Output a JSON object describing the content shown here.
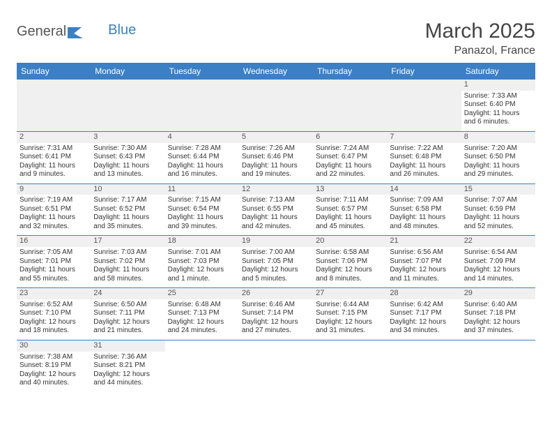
{
  "logo": {
    "part1": "General",
    "part2": "Blue"
  },
  "title": "March 2025",
  "location": "Panazol, France",
  "dayNames": [
    "Sunday",
    "Monday",
    "Tuesday",
    "Wednesday",
    "Thursday",
    "Friday",
    "Saturday"
  ],
  "colors": {
    "header_bg": "#3b7fc4",
    "header_text": "#ffffff",
    "border": "#3b7fc4",
    "daynum_bg": "#f0f0f0",
    "text": "#333333",
    "background": "#ffffff"
  },
  "weeks": [
    [
      null,
      null,
      null,
      null,
      null,
      null,
      {
        "n": "1",
        "sr": "Sunrise: 7:33 AM",
        "ss": "Sunset: 6:40 PM",
        "dl1": "Daylight: 11 hours",
        "dl2": "and 6 minutes."
      }
    ],
    [
      {
        "n": "2",
        "sr": "Sunrise: 7:31 AM",
        "ss": "Sunset: 6:41 PM",
        "dl1": "Daylight: 11 hours",
        "dl2": "and 9 minutes."
      },
      {
        "n": "3",
        "sr": "Sunrise: 7:30 AM",
        "ss": "Sunset: 6:43 PM",
        "dl1": "Daylight: 11 hours",
        "dl2": "and 13 minutes."
      },
      {
        "n": "4",
        "sr": "Sunrise: 7:28 AM",
        "ss": "Sunset: 6:44 PM",
        "dl1": "Daylight: 11 hours",
        "dl2": "and 16 minutes."
      },
      {
        "n": "5",
        "sr": "Sunrise: 7:26 AM",
        "ss": "Sunset: 6:46 PM",
        "dl1": "Daylight: 11 hours",
        "dl2": "and 19 minutes."
      },
      {
        "n": "6",
        "sr": "Sunrise: 7:24 AM",
        "ss": "Sunset: 6:47 PM",
        "dl1": "Daylight: 11 hours",
        "dl2": "and 22 minutes."
      },
      {
        "n": "7",
        "sr": "Sunrise: 7:22 AM",
        "ss": "Sunset: 6:48 PM",
        "dl1": "Daylight: 11 hours",
        "dl2": "and 26 minutes."
      },
      {
        "n": "8",
        "sr": "Sunrise: 7:20 AM",
        "ss": "Sunset: 6:50 PM",
        "dl1": "Daylight: 11 hours",
        "dl2": "and 29 minutes."
      }
    ],
    [
      {
        "n": "9",
        "sr": "Sunrise: 7:19 AM",
        "ss": "Sunset: 6:51 PM",
        "dl1": "Daylight: 11 hours",
        "dl2": "and 32 minutes."
      },
      {
        "n": "10",
        "sr": "Sunrise: 7:17 AM",
        "ss": "Sunset: 6:52 PM",
        "dl1": "Daylight: 11 hours",
        "dl2": "and 35 minutes."
      },
      {
        "n": "11",
        "sr": "Sunrise: 7:15 AM",
        "ss": "Sunset: 6:54 PM",
        "dl1": "Daylight: 11 hours",
        "dl2": "and 39 minutes."
      },
      {
        "n": "12",
        "sr": "Sunrise: 7:13 AM",
        "ss": "Sunset: 6:55 PM",
        "dl1": "Daylight: 11 hours",
        "dl2": "and 42 minutes."
      },
      {
        "n": "13",
        "sr": "Sunrise: 7:11 AM",
        "ss": "Sunset: 6:57 PM",
        "dl1": "Daylight: 11 hours",
        "dl2": "and 45 minutes."
      },
      {
        "n": "14",
        "sr": "Sunrise: 7:09 AM",
        "ss": "Sunset: 6:58 PM",
        "dl1": "Daylight: 11 hours",
        "dl2": "and 48 minutes."
      },
      {
        "n": "15",
        "sr": "Sunrise: 7:07 AM",
        "ss": "Sunset: 6:59 PM",
        "dl1": "Daylight: 11 hours",
        "dl2": "and 52 minutes."
      }
    ],
    [
      {
        "n": "16",
        "sr": "Sunrise: 7:05 AM",
        "ss": "Sunset: 7:01 PM",
        "dl1": "Daylight: 11 hours",
        "dl2": "and 55 minutes."
      },
      {
        "n": "17",
        "sr": "Sunrise: 7:03 AM",
        "ss": "Sunset: 7:02 PM",
        "dl1": "Daylight: 11 hours",
        "dl2": "and 58 minutes."
      },
      {
        "n": "18",
        "sr": "Sunrise: 7:01 AM",
        "ss": "Sunset: 7:03 PM",
        "dl1": "Daylight: 12 hours",
        "dl2": "and 1 minute."
      },
      {
        "n": "19",
        "sr": "Sunrise: 7:00 AM",
        "ss": "Sunset: 7:05 PM",
        "dl1": "Daylight: 12 hours",
        "dl2": "and 5 minutes."
      },
      {
        "n": "20",
        "sr": "Sunrise: 6:58 AM",
        "ss": "Sunset: 7:06 PM",
        "dl1": "Daylight: 12 hours",
        "dl2": "and 8 minutes."
      },
      {
        "n": "21",
        "sr": "Sunrise: 6:56 AM",
        "ss": "Sunset: 7:07 PM",
        "dl1": "Daylight: 12 hours",
        "dl2": "and 11 minutes."
      },
      {
        "n": "22",
        "sr": "Sunrise: 6:54 AM",
        "ss": "Sunset: 7:09 PM",
        "dl1": "Daylight: 12 hours",
        "dl2": "and 14 minutes."
      }
    ],
    [
      {
        "n": "23",
        "sr": "Sunrise: 6:52 AM",
        "ss": "Sunset: 7:10 PM",
        "dl1": "Daylight: 12 hours",
        "dl2": "and 18 minutes."
      },
      {
        "n": "24",
        "sr": "Sunrise: 6:50 AM",
        "ss": "Sunset: 7:11 PM",
        "dl1": "Daylight: 12 hours",
        "dl2": "and 21 minutes."
      },
      {
        "n": "25",
        "sr": "Sunrise: 6:48 AM",
        "ss": "Sunset: 7:13 PM",
        "dl1": "Daylight: 12 hours",
        "dl2": "and 24 minutes."
      },
      {
        "n": "26",
        "sr": "Sunrise: 6:46 AM",
        "ss": "Sunset: 7:14 PM",
        "dl1": "Daylight: 12 hours",
        "dl2": "and 27 minutes."
      },
      {
        "n": "27",
        "sr": "Sunrise: 6:44 AM",
        "ss": "Sunset: 7:15 PM",
        "dl1": "Daylight: 12 hours",
        "dl2": "and 31 minutes."
      },
      {
        "n": "28",
        "sr": "Sunrise: 6:42 AM",
        "ss": "Sunset: 7:17 PM",
        "dl1": "Daylight: 12 hours",
        "dl2": "and 34 minutes."
      },
      {
        "n": "29",
        "sr": "Sunrise: 6:40 AM",
        "ss": "Sunset: 7:18 PM",
        "dl1": "Daylight: 12 hours",
        "dl2": "and 37 minutes."
      }
    ],
    [
      {
        "n": "30",
        "sr": "Sunrise: 7:38 AM",
        "ss": "Sunset: 8:19 PM",
        "dl1": "Daylight: 12 hours",
        "dl2": "and 40 minutes."
      },
      {
        "n": "31",
        "sr": "Sunrise: 7:36 AM",
        "ss": "Sunset: 8:21 PM",
        "dl1": "Daylight: 12 hours",
        "dl2": "and 44 minutes."
      },
      null,
      null,
      null,
      null,
      null
    ]
  ]
}
